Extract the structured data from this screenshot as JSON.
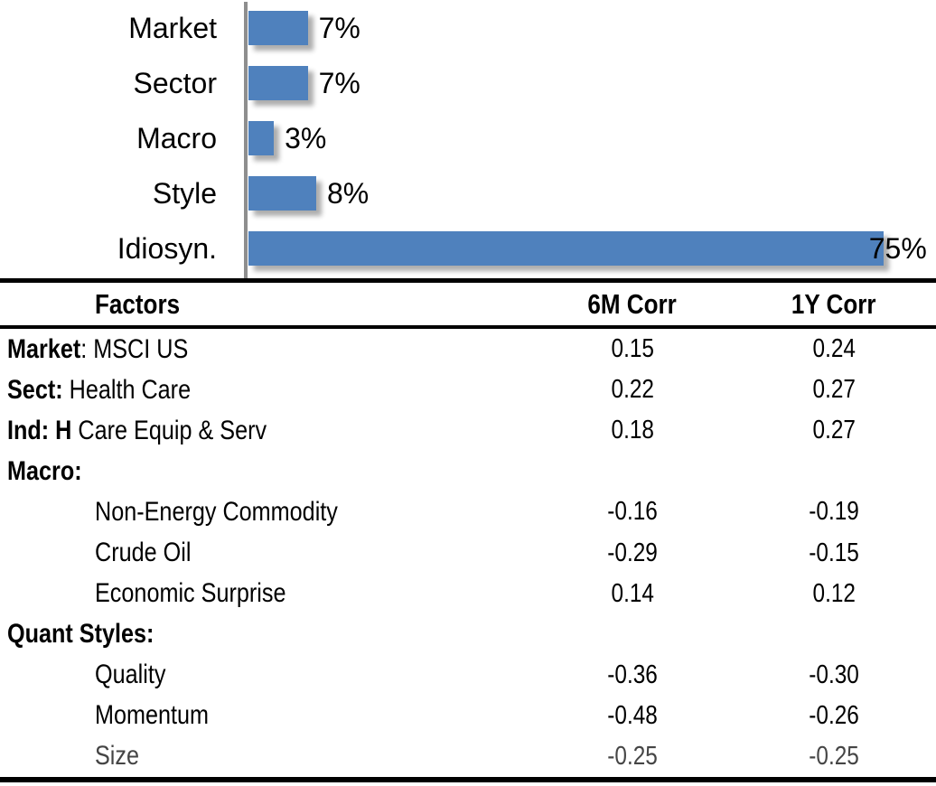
{
  "chart_data": {
    "type": "bar",
    "orientation": "horizontal",
    "title": "",
    "categories": [
      "Market",
      "Sector",
      "Macro",
      "Style",
      "Idiosyn."
    ],
    "values": [
      7,
      7,
      3,
      8,
      75
    ],
    "value_labels": [
      "7%",
      "7%",
      "3%",
      "8%",
      "75%"
    ],
    "xlim": [
      0,
      80
    ],
    "grid": false,
    "legend": false,
    "bar_color": "#4f81bd",
    "axis_color": "#8e8e8e"
  },
  "table": {
    "header": {
      "factors": "Factors",
      "corr_6m": "6M Corr",
      "corr_1y": "1Y Corr"
    },
    "rows": [
      {
        "label_bold": "Market",
        "label_rest": ": MSCI US",
        "indent": false,
        "muted": false,
        "corr_6m": "0.15",
        "corr_1y": "0.24"
      },
      {
        "label_bold": "Sect:",
        "label_rest": " Health Care",
        "indent": false,
        "muted": false,
        "corr_6m": "0.22",
        "corr_1y": "0.27"
      },
      {
        "label_bold": "Ind: H",
        "label_rest": " Care Equip & Serv",
        "indent": false,
        "muted": false,
        "corr_6m": "0.18",
        "corr_1y": "0.27"
      },
      {
        "label_bold": "Macro:",
        "label_rest": "",
        "indent": false,
        "muted": false,
        "corr_6m": "",
        "corr_1y": ""
      },
      {
        "label_bold": "",
        "label_rest": "Non-Energy Commodity",
        "indent": true,
        "muted": false,
        "corr_6m": "-0.16",
        "corr_1y": "-0.19"
      },
      {
        "label_bold": "",
        "label_rest": "Crude Oil",
        "indent": true,
        "muted": false,
        "corr_6m": "-0.29",
        "corr_1y": "-0.15"
      },
      {
        "label_bold": "",
        "label_rest": "Economic Surprise",
        "indent": true,
        "muted": false,
        "corr_6m": "0.14",
        "corr_1y": "0.12"
      },
      {
        "label_bold": "Quant Styles:",
        "label_rest": "",
        "indent": false,
        "muted": false,
        "corr_6m": "",
        "corr_1y": ""
      },
      {
        "label_bold": "",
        "label_rest": "Quality",
        "indent": true,
        "muted": false,
        "corr_6m": "-0.36",
        "corr_1y": "-0.30"
      },
      {
        "label_bold": "",
        "label_rest": "Momentum",
        "indent": true,
        "muted": false,
        "corr_6m": "-0.48",
        "corr_1y": "-0.26"
      },
      {
        "label_bold": "",
        "label_rest": "Size",
        "indent": true,
        "muted": true,
        "corr_6m": "-0.25",
        "corr_1y": "-0.25"
      }
    ]
  }
}
